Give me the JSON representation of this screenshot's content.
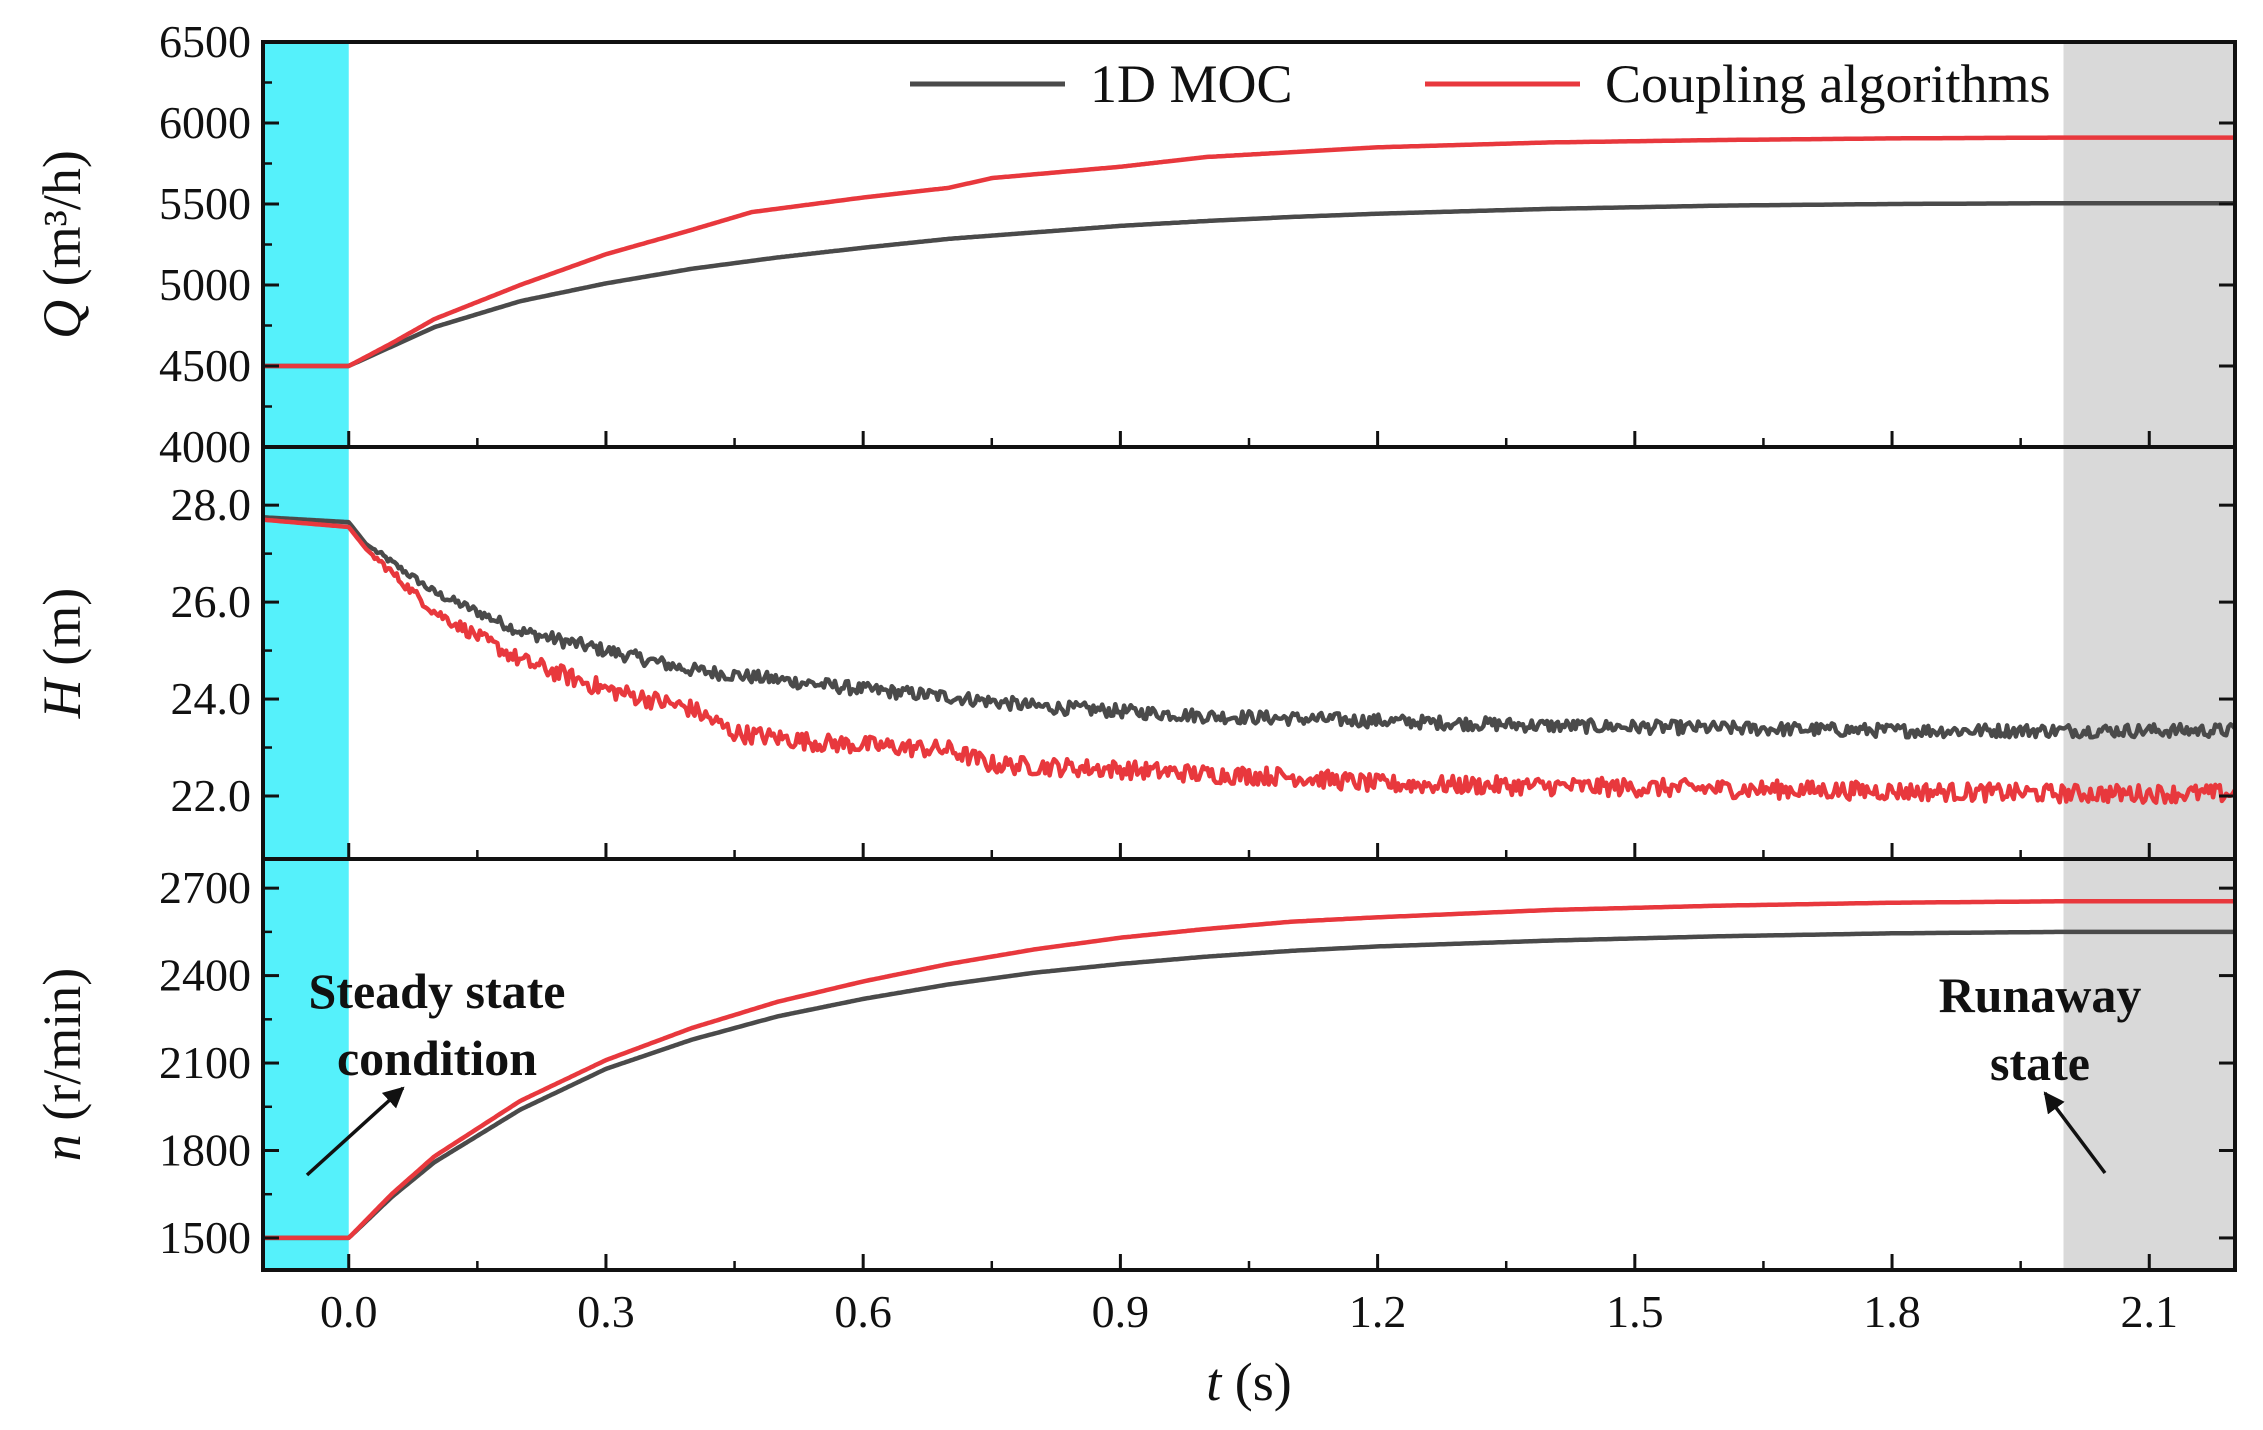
{
  "chart_data": {
    "type": "line",
    "x_label": {
      "symbol": "t",
      "unit": "(s)"
    },
    "x_range": [
      -0.1,
      2.2
    ],
    "x_ticks": [
      "0.0",
      "0.3",
      "0.6",
      "0.9",
      "1.2",
      "1.5",
      "1.8",
      "2.1"
    ],
    "legend": {
      "placement": "top-right",
      "items": [
        {
          "label": "1D MOC",
          "color": "#4a4a4a"
        },
        {
          "label": "Coupling algorithms",
          "color": "#e8383d"
        }
      ]
    },
    "shaded_regions": [
      {
        "name": "steady",
        "x_range": [
          -0.1,
          0.0
        ],
        "color": "#55f1fb"
      },
      {
        "name": "runaway",
        "x_range": [
          2.0,
          2.2
        ],
        "color": "#d9d9d9"
      }
    ],
    "annotations": {
      "steady": {
        "lines": [
          "Steady state",
          "condition"
        ]
      },
      "runaway": {
        "lines": [
          "Runaway",
          "state"
        ]
      }
    },
    "panels": [
      {
        "id": "Q",
        "y_label": {
          "symbol": "Q",
          "unit": "(m³/h)"
        },
        "y_range": [
          4000,
          6500
        ],
        "y_ticks": [
          "4000",
          "4500",
          "5000",
          "5500",
          "6000",
          "6500"
        ],
        "noise": 0,
        "series": [
          {
            "name": "1D MOC",
            "color": "#4a4a4a",
            "points": [
              [
                -0.1,
                4500
              ],
              [
                0,
                4500
              ],
              [
                0.05,
                4620
              ],
              [
                0.1,
                4740
              ],
              [
                0.2,
                4900
              ],
              [
                0.3,
                5010
              ],
              [
                0.4,
                5100
              ],
              [
                0.5,
                5170
              ],
              [
                0.6,
                5230
              ],
              [
                0.7,
                5285
              ],
              [
                0.8,
                5325
              ],
              [
                0.9,
                5365
              ],
              [
                1.0,
                5395
              ],
              [
                1.1,
                5420
              ],
              [
                1.2,
                5440
              ],
              [
                1.4,
                5470
              ],
              [
                1.6,
                5490
              ],
              [
                1.8,
                5500
              ],
              [
                2.0,
                5505
              ],
              [
                2.2,
                5505
              ]
            ]
          },
          {
            "name": "Coupling algorithms",
            "color": "#e8383d",
            "points": [
              [
                -0.1,
                4500
              ],
              [
                0,
                4500
              ],
              [
                0.05,
                4640
              ],
              [
                0.1,
                4790
              ],
              [
                0.2,
                5000
              ],
              [
                0.3,
                5190
              ],
              [
                0.4,
                5340
              ],
              [
                0.47,
                5450
              ],
              [
                0.6,
                5540
              ],
              [
                0.7,
                5600
              ],
              [
                0.75,
                5660
              ],
              [
                0.9,
                5730
              ],
              [
                1.0,
                5790
              ],
              [
                1.1,
                5820
              ],
              [
                1.2,
                5850
              ],
              [
                1.4,
                5880
              ],
              [
                1.6,
                5895
              ],
              [
                1.8,
                5905
              ],
              [
                2.0,
                5910
              ],
              [
                2.2,
                5910
              ]
            ]
          }
        ]
      },
      {
        "id": "H",
        "y_label": {
          "symbol": "H",
          "unit": "(m)"
        },
        "y_range": [
          20.7,
          29.2
        ],
        "y_ticks": [
          "22.0",
          "24.0",
          "26.0",
          "28.0"
        ],
        "noise": 0.14,
        "series": [
          {
            "name": "1D MOC",
            "color": "#4a4a4a",
            "points": [
              [
                -0.1,
                27.75
              ],
              [
                0,
                27.65
              ],
              [
                0.02,
                27.2
              ],
              [
                0.1,
                26.2
              ],
              [
                0.2,
                25.4
              ],
              [
                0.3,
                25.0
              ],
              [
                0.4,
                24.6
              ],
              [
                0.5,
                24.4
              ],
              [
                0.6,
                24.2
              ],
              [
                0.7,
                24.05
              ],
              [
                0.8,
                23.85
              ],
              [
                0.9,
                23.75
              ],
              [
                1.0,
                23.65
              ],
              [
                1.1,
                23.6
              ],
              [
                1.2,
                23.55
              ],
              [
                1.4,
                23.45
              ],
              [
                1.6,
                23.4
              ],
              [
                1.8,
                23.35
              ],
              [
                2.0,
                23.35
              ],
              [
                2.2,
                23.35
              ]
            ]
          },
          {
            "name": "Coupling algorithms",
            "color": "#e8383d",
            "points": [
              [
                -0.1,
                27.7
              ],
              [
                0,
                27.55
              ],
              [
                0.02,
                27.1
              ],
              [
                0.1,
                25.8
              ],
              [
                0.2,
                24.8
              ],
              [
                0.3,
                24.2
              ],
              [
                0.4,
                23.8
              ],
              [
                0.45,
                23.3
              ],
              [
                0.55,
                23.1
              ],
              [
                0.7,
                22.95
              ],
              [
                0.75,
                22.65
              ],
              [
                0.9,
                22.55
              ],
              [
                1.0,
                22.45
              ],
              [
                1.1,
                22.4
              ],
              [
                1.2,
                22.25
              ],
              [
                1.4,
                22.2
              ],
              [
                1.6,
                22.15
              ],
              [
                1.8,
                22.1
              ],
              [
                2.0,
                22.05
              ],
              [
                2.2,
                22.05
              ]
            ]
          }
        ]
      },
      {
        "id": "n",
        "y_label": {
          "symbol": "n",
          "unit": "(r/min)"
        },
        "y_range": [
          1390,
          2800
        ],
        "y_ticks": [
          "1500",
          "1800",
          "2100",
          "2400",
          "2700"
        ],
        "noise": 0,
        "series": [
          {
            "name": "1D MOC",
            "color": "#4a4a4a",
            "points": [
              [
                -0.1,
                1500
              ],
              [
                0,
                1500
              ],
              [
                0.05,
                1640
              ],
              [
                0.1,
                1760
              ],
              [
                0.2,
                1940
              ],
              [
                0.3,
                2080
              ],
              [
                0.4,
                2180
              ],
              [
                0.5,
                2260
              ],
              [
                0.6,
                2320
              ],
              [
                0.7,
                2370
              ],
              [
                0.8,
                2410
              ],
              [
                0.9,
                2440
              ],
              [
                1.0,
                2465
              ],
              [
                1.1,
                2485
              ],
              [
                1.2,
                2500
              ],
              [
                1.4,
                2520
              ],
              [
                1.6,
                2535
              ],
              [
                1.8,
                2545
              ],
              [
                2.0,
                2550
              ],
              [
                2.2,
                2550
              ]
            ]
          },
          {
            "name": "Coupling algorithms",
            "color": "#e8383d",
            "points": [
              [
                -0.1,
                1500
              ],
              [
                0,
                1500
              ],
              [
                0.05,
                1650
              ],
              [
                0.1,
                1780
              ],
              [
                0.2,
                1970
              ],
              [
                0.3,
                2110
              ],
              [
                0.4,
                2220
              ],
              [
                0.5,
                2310
              ],
              [
                0.6,
                2380
              ],
              [
                0.7,
                2440
              ],
              [
                0.8,
                2490
              ],
              [
                0.9,
                2530
              ],
              [
                1.0,
                2560
              ],
              [
                1.1,
                2585
              ],
              [
                1.2,
                2600
              ],
              [
                1.4,
                2625
              ],
              [
                1.6,
                2640
              ],
              [
                1.8,
                2650
              ],
              [
                2.0,
                2655
              ],
              [
                2.2,
                2655
              ]
            ]
          }
        ]
      }
    ]
  }
}
